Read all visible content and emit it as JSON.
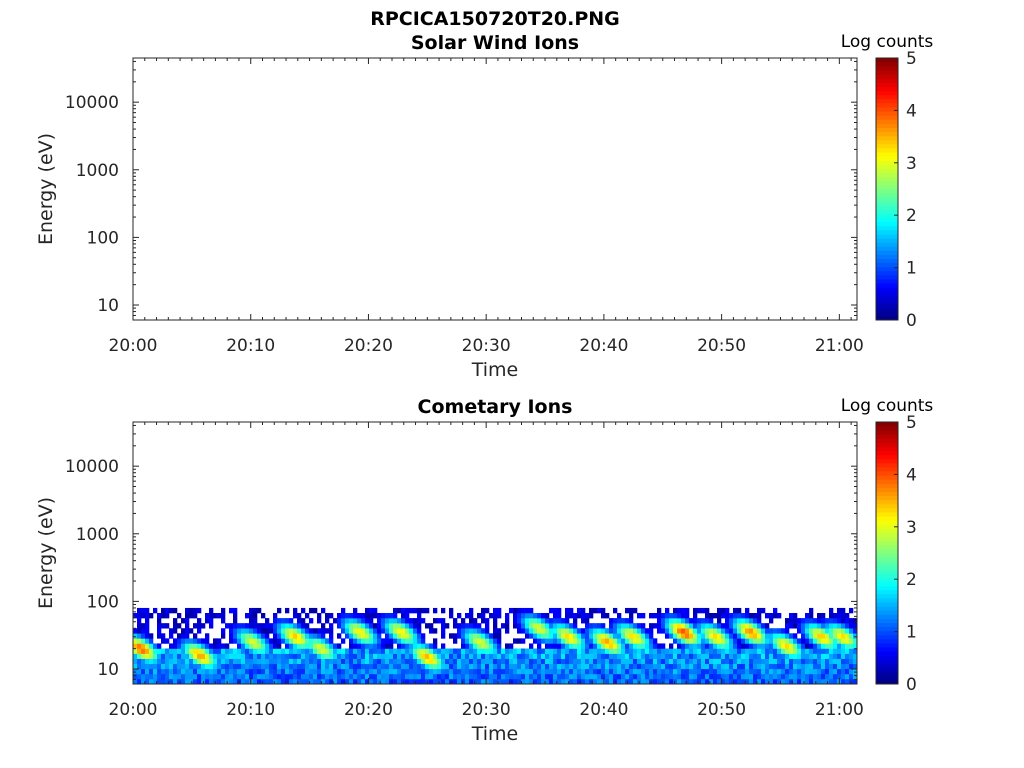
{
  "figure_title": "RPCICA150720T20.PNG",
  "chart_data": [
    {
      "type": "heatmap",
      "title": "Solar Wind Ions",
      "xlabel": "Time",
      "ylabel": "Energy (eV)",
      "x_ticks": [
        "20:00",
        "20:10",
        "20:20",
        "20:30",
        "20:40",
        "20:50",
        "21:00"
      ],
      "x_range_minutes": [
        0,
        61.5
      ],
      "y_scale": "log",
      "y_ticks": [
        10,
        100,
        1000,
        10000
      ],
      "y_tick_labels": [
        "10",
        "100",
        "1000",
        "10000"
      ],
      "y_range": [
        6,
        45000
      ],
      "colorbar": {
        "label": "Log counts",
        "min": 0,
        "max": 5,
        "ticks": [
          "0",
          "1",
          "2",
          "3",
          "4",
          "5"
        ],
        "colormap": "jet"
      },
      "data": "empty"
    },
    {
      "type": "heatmap",
      "title": "Cometary Ions",
      "xlabel": "Time",
      "ylabel": "Energy (eV)",
      "x_ticks": [
        "20:00",
        "20:10",
        "20:20",
        "20:30",
        "20:40",
        "20:50",
        "21:00"
      ],
      "x_range_minutes": [
        0,
        61.5
      ],
      "y_scale": "log",
      "y_ticks": [
        10,
        100,
        1000,
        10000
      ],
      "y_tick_labels": [
        "10",
        "100",
        "1000",
        "10000"
      ],
      "y_range": [
        6,
        45000
      ],
      "colorbar": {
        "label": "Log counts",
        "min": 0,
        "max": 5,
        "ticks": [
          "0",
          "1",
          "2",
          "3",
          "4",
          "5"
        ],
        "colormap": "jet"
      },
      "signal_energy_range_eV": [
        6,
        80
      ],
      "peak_events": [
        {
          "time_min": 0.7,
          "energy_eV": 20,
          "log_counts": 3.9
        },
        {
          "time_min": 5.7,
          "energy_eV": 16,
          "log_counts": 3.6
        },
        {
          "time_min": 10.2,
          "energy_eV": 25,
          "log_counts": 3.0
        },
        {
          "time_min": 13.8,
          "energy_eV": 30,
          "log_counts": 3.4
        },
        {
          "time_min": 16.0,
          "energy_eV": 20,
          "log_counts": 3.0
        },
        {
          "time_min": 19.3,
          "energy_eV": 35,
          "log_counts": 3.2
        },
        {
          "time_min": 22.8,
          "energy_eV": 35,
          "log_counts": 3.2
        },
        {
          "time_min": 25.0,
          "energy_eV": 15,
          "log_counts": 3.5
        },
        {
          "time_min": 29.5,
          "energy_eV": 25,
          "log_counts": 3.0
        },
        {
          "time_min": 34.5,
          "energy_eV": 40,
          "log_counts": 3.0
        },
        {
          "time_min": 37.0,
          "energy_eV": 30,
          "log_counts": 3.3
        },
        {
          "time_min": 40.3,
          "energy_eV": 25,
          "log_counts": 3.6
        },
        {
          "time_min": 42.5,
          "energy_eV": 30,
          "log_counts": 3.3
        },
        {
          "time_min": 46.8,
          "energy_eV": 35,
          "log_counts": 4.0
        },
        {
          "time_min": 49.5,
          "energy_eV": 30,
          "log_counts": 3.3
        },
        {
          "time_min": 52.5,
          "energy_eV": 35,
          "log_counts": 3.7
        },
        {
          "time_min": 55.5,
          "energy_eV": 22,
          "log_counts": 3.3
        },
        {
          "time_min": 58.5,
          "energy_eV": 30,
          "log_counts": 3.4
        },
        {
          "time_min": 60.3,
          "energy_eV": 30,
          "log_counts": 3.3
        }
      ]
    }
  ]
}
